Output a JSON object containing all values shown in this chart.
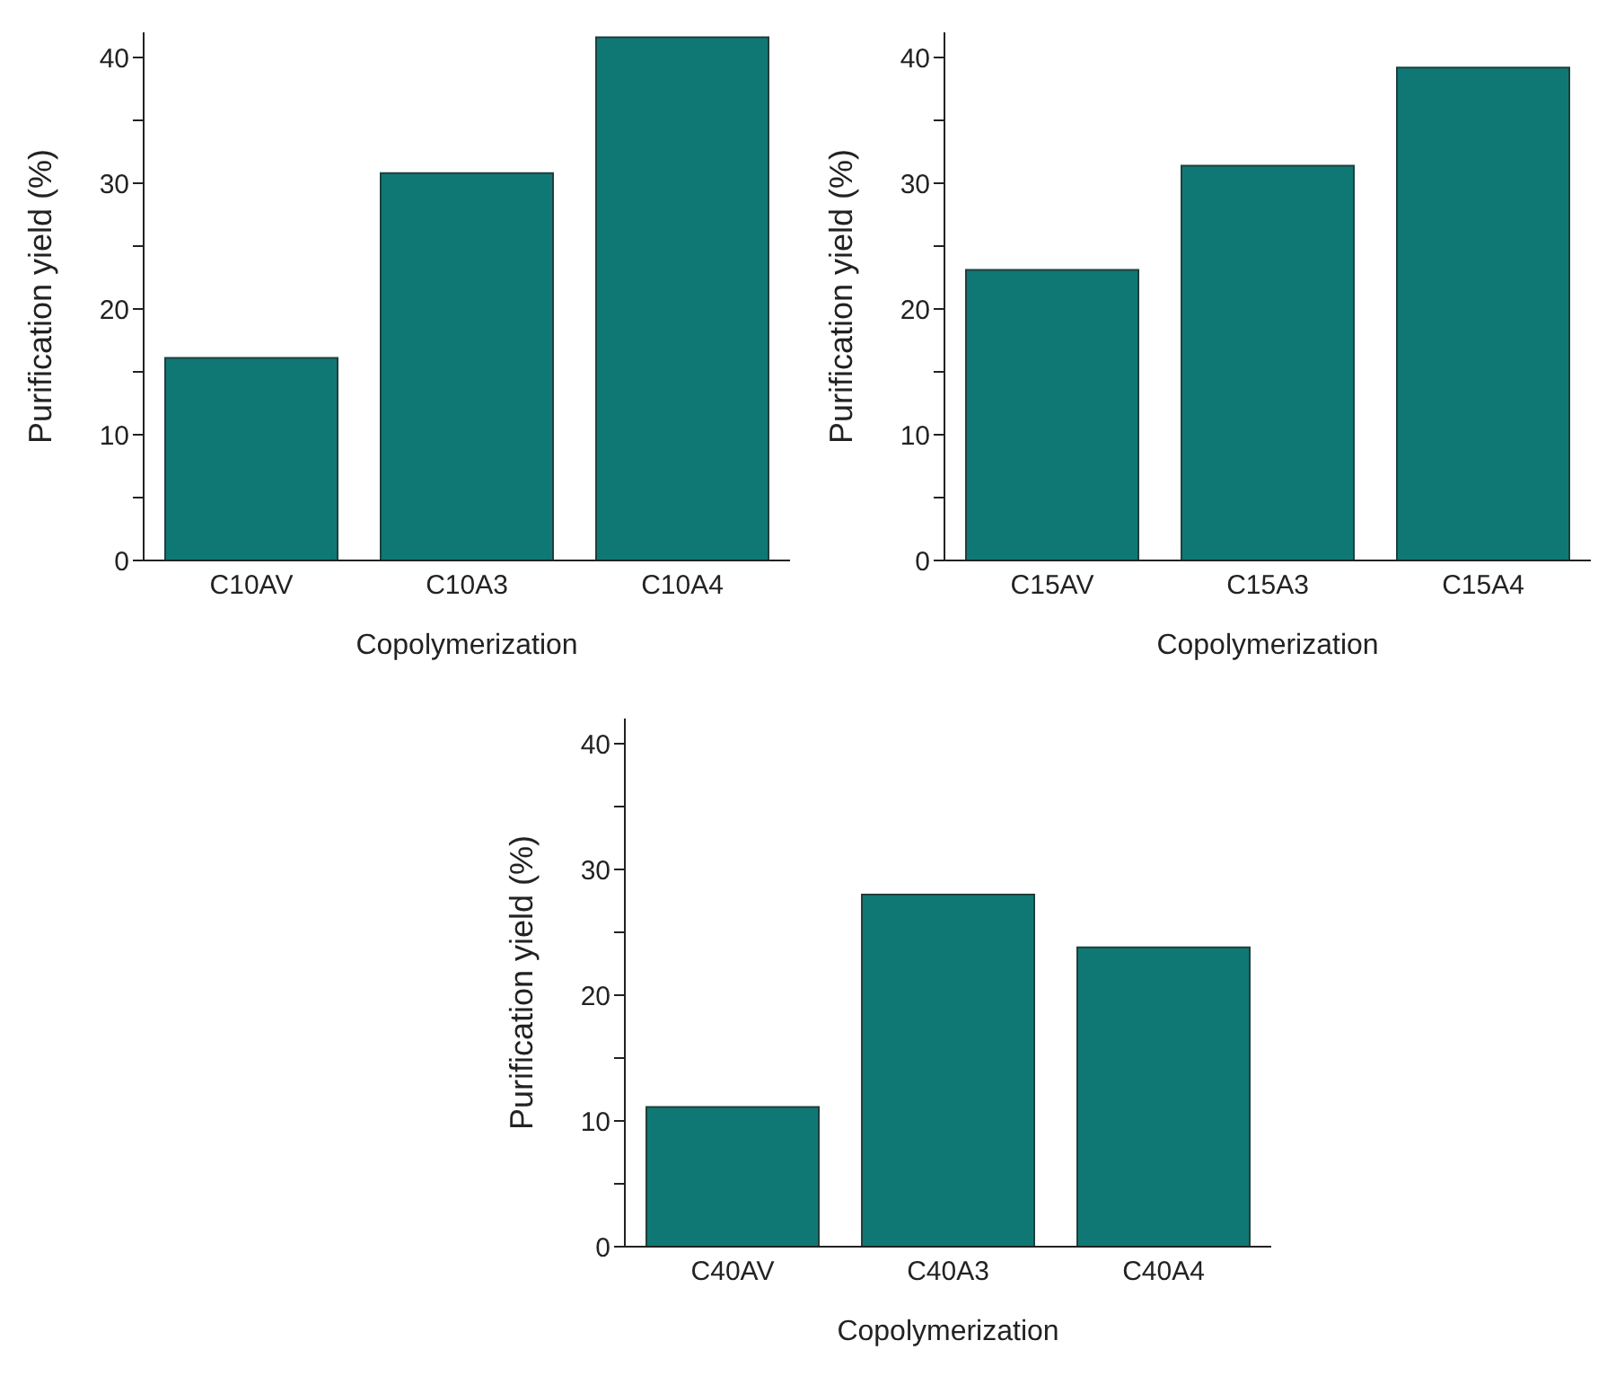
{
  "chart_data": [
    {
      "type": "bar",
      "xlabel": "Copolymerization",
      "ylabel": "Purification yield (%)",
      "categories": [
        "C10AV",
        "C10A3",
        "C10A4"
      ],
      "values": [
        16.1,
        30.8,
        41.6
      ],
      "color": "#107874",
      "ylim": [
        0,
        42
      ],
      "yticks": [
        0,
        {
          "value": 5,
          "label": null
        },
        10,
        {
          "value": 15,
          "label": null
        },
        20,
        {
          "value": 25,
          "label": null
        },
        30,
        {
          "value": 35,
          "label": null
        },
        40
      ]
    },
    {
      "type": "bar",
      "xlabel": "Copolymerization",
      "ylabel": "Purification yield (%)",
      "categories": [
        "C15AV",
        "C15A3",
        "C15A4"
      ],
      "values": [
        23.1,
        31.4,
        39.2
      ],
      "color": "#107874",
      "ylim": [
        0,
        42
      ],
      "yticks": [
        0,
        {
          "value": 5,
          "label": null
        },
        10,
        {
          "value": 15,
          "label": null
        },
        20,
        {
          "value": 25,
          "label": null
        },
        30,
        {
          "value": 35,
          "label": null
        },
        40
      ]
    },
    {
      "type": "bar",
      "xlabel": "Copolymerization",
      "ylabel": "Purification yield (%)",
      "categories": [
        "C40AV",
        "C40A3",
        "C40A4"
      ],
      "values": [
        11.1,
        28.0,
        23.8
      ],
      "color": "#107874",
      "ylim": [
        0,
        42
      ],
      "yticks": [
        0,
        {
          "value": 5,
          "label": null
        },
        10,
        {
          "value": 15,
          "label": null
        },
        20,
        {
          "value": 25,
          "label": null
        },
        30,
        {
          "value": 35,
          "label": null
        },
        40
      ]
    }
  ]
}
